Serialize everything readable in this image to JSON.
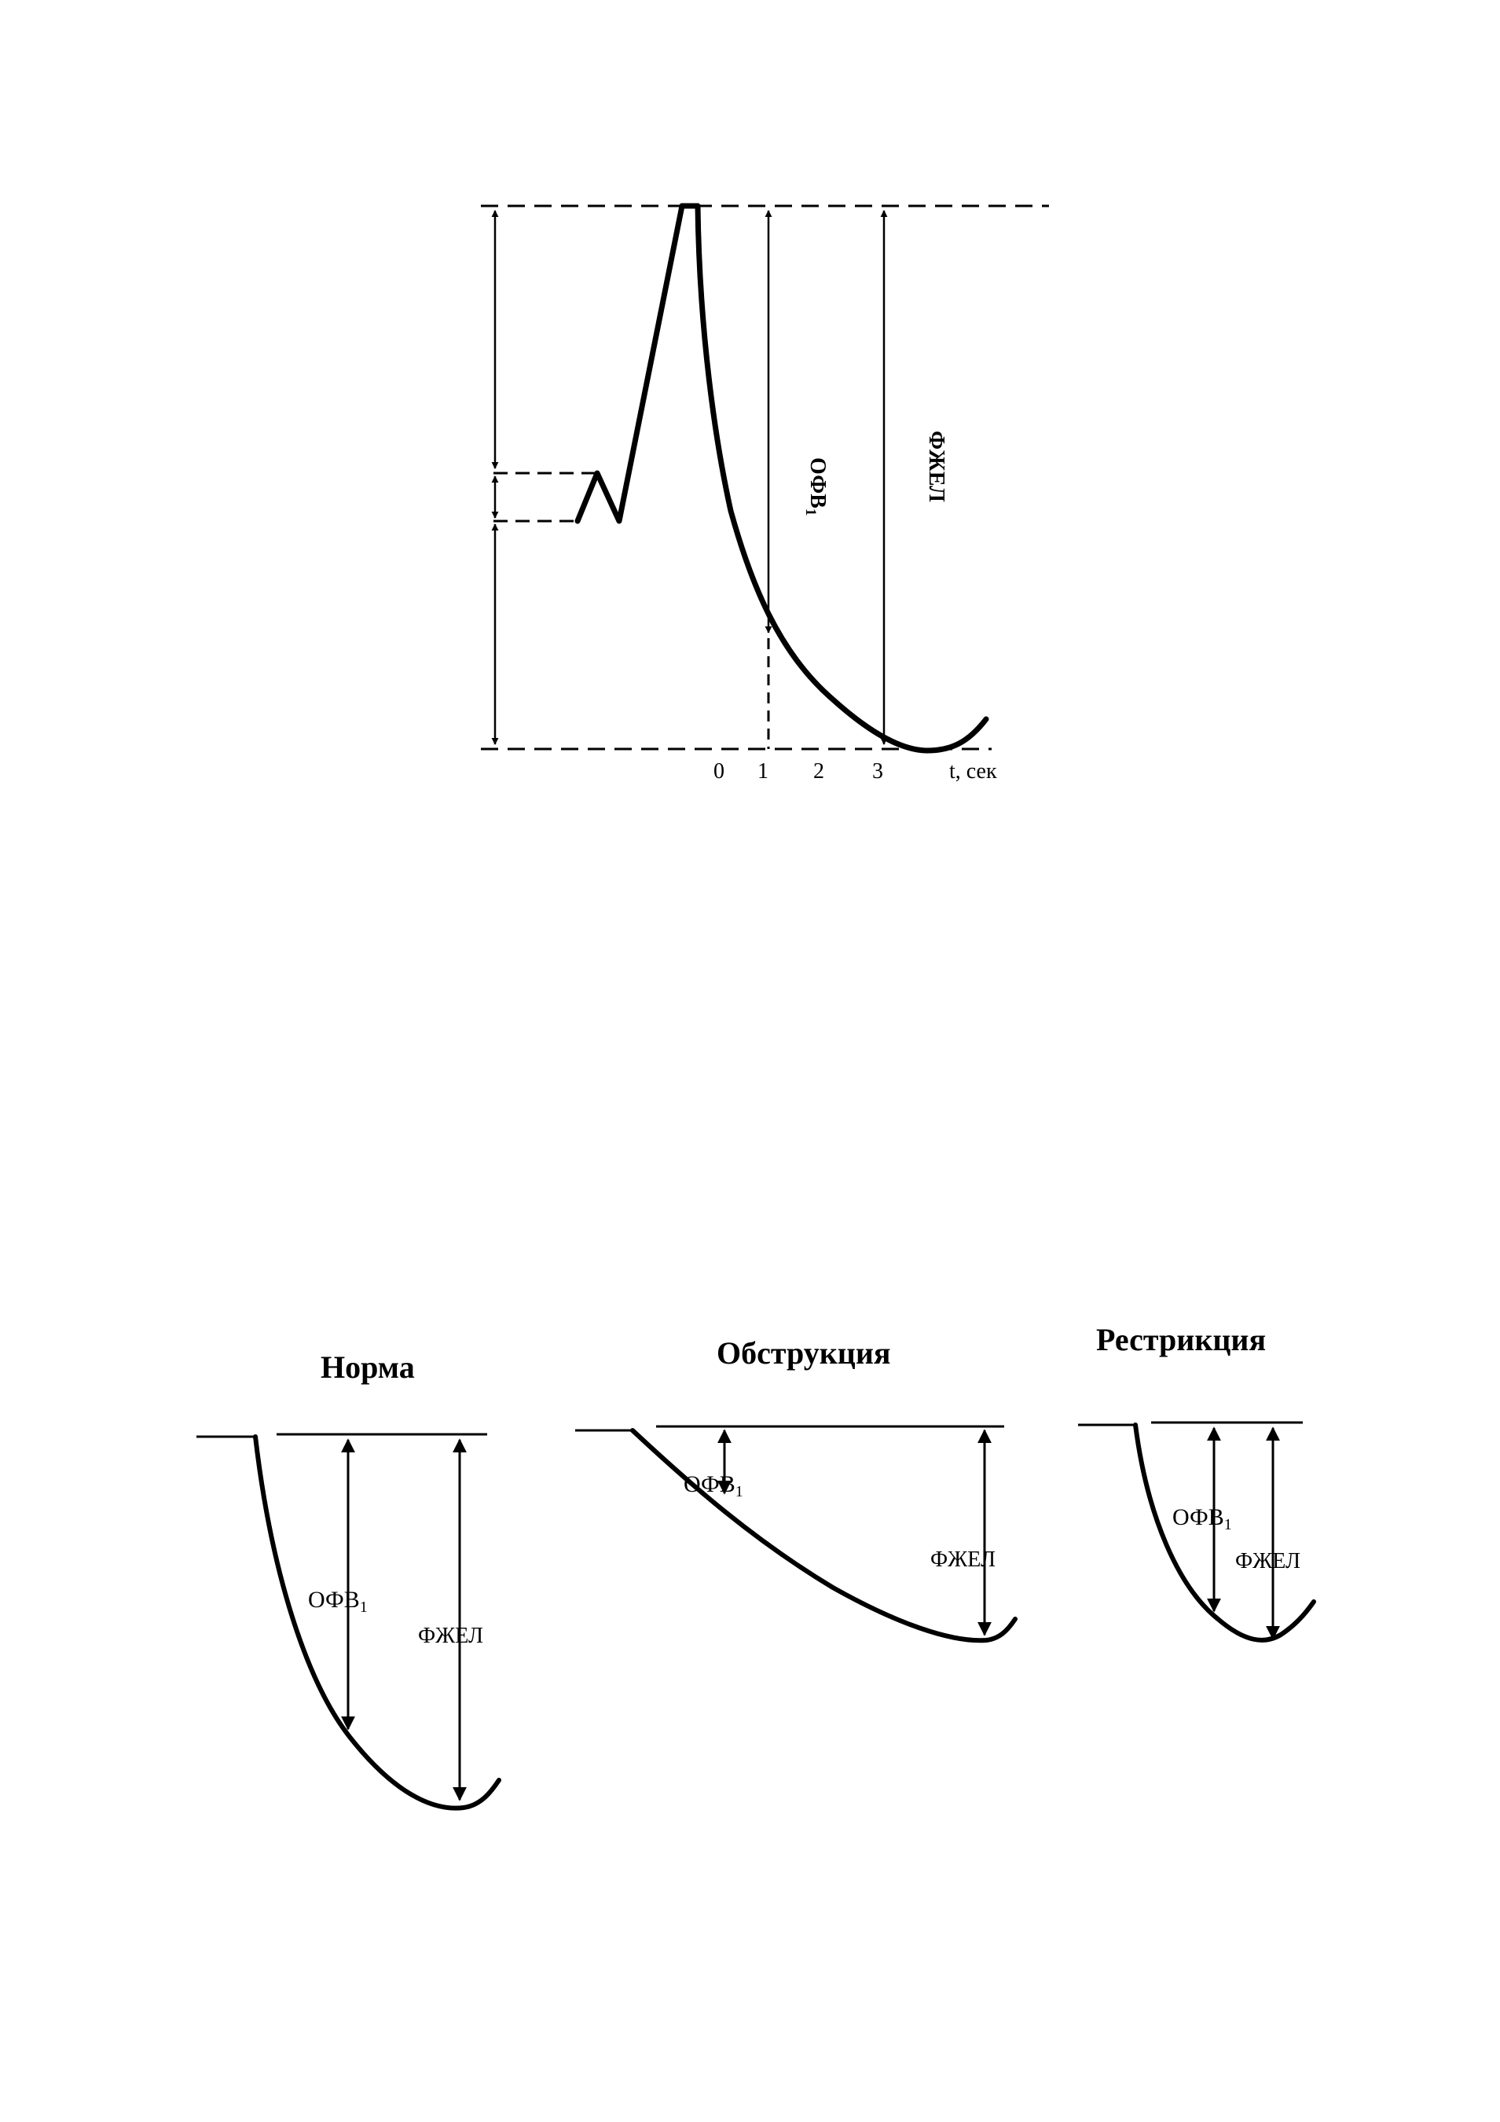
{
  "spirogram": {
    "axis_ticks": [
      "0",
      "1",
      "2",
      "3"
    ],
    "axis_unit": "t, сек",
    "fev1_label": "ОФВ",
    "fev1_sub": "1",
    "fvc_label": "ФЖЕЛ"
  },
  "panels": [
    {
      "title": "Норма",
      "fev1_label": "ОФВ",
      "fev1_sub": "1",
      "fvc_label": "ФЖЕЛ"
    },
    {
      "title": "Обструкция",
      "fev1_label": "ОФВ",
      "fev1_sub": "1",
      "fvc_label": "ФЖЕЛ"
    },
    {
      "title": "Рестрикция",
      "fev1_label": "ОФВ",
      "fev1_sub": "1",
      "fvc_label": "ФЖЕЛ"
    }
  ]
}
